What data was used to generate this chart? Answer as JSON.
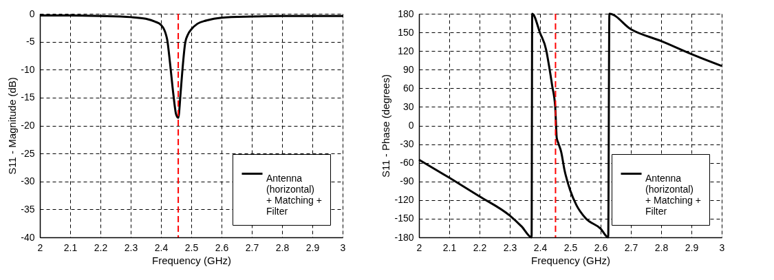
{
  "chart_data": [
    {
      "type": "line",
      "xlabel": "Frequency (GHz)",
      "ylabel": "S11 - Magnitude (dB)",
      "xlim": [
        2,
        3
      ],
      "xticks": [
        2,
        2.1,
        2.2,
        2.3,
        2.4,
        2.5,
        2.6,
        2.7,
        2.8,
        2.9,
        3
      ],
      "ylim": [
        -40,
        0
      ],
      "yticks": [
        -40,
        -35,
        -30,
        -25,
        -20,
        -15,
        -10,
        -5,
        0
      ],
      "grid": true,
      "legend": "bottom right",
      "line_style": "solid",
      "marker": "none",
      "x": [
        2,
        2.1,
        2.2,
        2.3,
        2.35,
        2.38,
        2.4,
        2.42,
        2.43,
        2.44,
        2.45,
        2.457,
        2.465,
        2.47,
        2.48,
        2.49,
        2.5,
        2.52,
        2.55,
        2.6,
        2.7,
        2.8,
        2.9,
        3
      ],
      "series": [
        {
          "name": "Antenna (horizontal) + Matching + Filter",
          "color": "#000000",
          "values": [
            -0.3,
            -0.3,
            -0.4,
            -0.6,
            -0.9,
            -1.4,
            -2,
            -4.5,
            -8.9,
            -14,
            -18,
            -18.6,
            -14,
            -10.6,
            -5.2,
            -3.6,
            -2.8,
            -1.8,
            -1.2,
            -0.7,
            -0.5,
            -0.4,
            -0.4,
            -0.4
          ]
        }
      ],
      "ref_lines": [
        {
          "axis": "x",
          "value": 2.457,
          "color": "#ff0000",
          "line_style": "dashed"
        }
      ]
    },
    {
      "type": "line",
      "xlabel": "Frequency (GHz)",
      "ylabel": "S11 - Phase (degrees)",
      "xlim": [
        2,
        3
      ],
      "xticks": [
        2,
        2.1,
        2.2,
        2.3,
        2.4,
        2.5,
        2.6,
        2.7,
        2.8,
        2.9,
        3
      ],
      "ylim": [
        -180,
        180
      ],
      "yticks": [
        -180,
        -150,
        -120,
        -90,
        -60,
        -30,
        0,
        30,
        60,
        90,
        120,
        150,
        180
      ],
      "grid": true,
      "legend": "bottom right",
      "line_style": "solid",
      "marker": "none",
      "x": [
        2,
        2.1,
        2.2,
        2.3,
        2.34,
        2.372,
        2.374,
        2.4,
        2.42,
        2.43,
        2.44,
        2.45,
        2.455,
        2.46,
        2.47,
        2.48,
        2.5,
        2.52,
        2.55,
        2.6,
        2.625,
        2.629,
        2.7,
        2.8,
        2.9,
        3
      ],
      "series": [
        {
          "name": "Antenna (horizontal) + Matching + Filter",
          "color": "#000000",
          "values": [
            -55,
            -84,
            -114,
            -145,
            -163,
            -180,
            180,
            149,
            122,
            95,
            64,
            30,
            -20,
            -28,
            -43,
            -70,
            -105,
            -128,
            -149,
            -166,
            -180,
            180,
            155,
            136,
            115,
            96
          ]
        }
      ],
      "ref_lines": [
        {
          "axis": "x",
          "value": 2.451,
          "color": "#ff0000",
          "line_style": "dashed"
        }
      ]
    }
  ]
}
